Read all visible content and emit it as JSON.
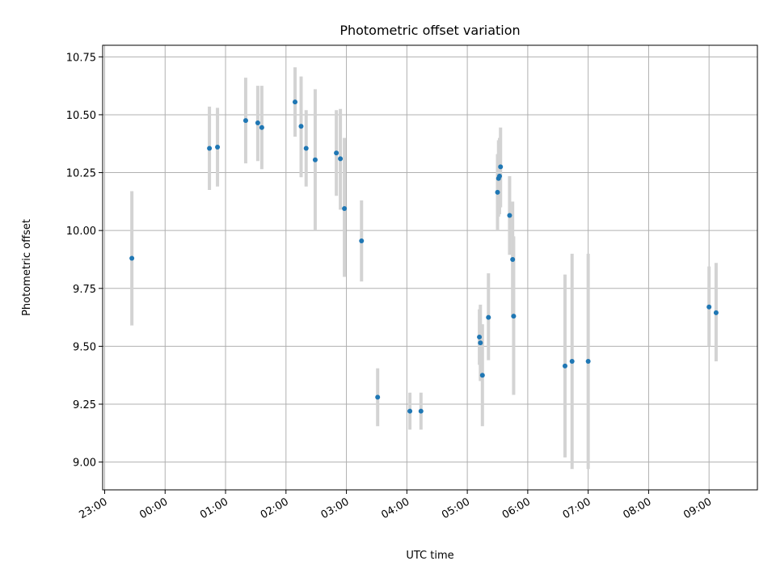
{
  "chart_data": {
    "type": "scatter",
    "title": "Photometric offset variation",
    "xlabel": "UTC time",
    "ylabel": "Photometric offset",
    "x_is_time": true,
    "xlim": [
      "22:58",
      "09:48"
    ],
    "ylim": [
      8.88,
      10.8
    ],
    "x_ticks": [
      "23:00",
      "00:00",
      "01:00",
      "02:00",
      "03:00",
      "04:00",
      "05:00",
      "06:00",
      "07:00",
      "08:00",
      "09:00"
    ],
    "y_ticks": [
      "9.00",
      "9.25",
      "9.50",
      "9.75",
      "10.00",
      "10.25",
      "10.50",
      "10.75"
    ],
    "y_tick_values": [
      9.0,
      9.25,
      9.5,
      9.75,
      10.0,
      10.25,
      10.5,
      10.75
    ],
    "grid": true,
    "marker_color": "#1f77b4",
    "errorbar_color": "#d3d3d3",
    "points": [
      {
        "x": "23:27",
        "y": 9.88,
        "lo": 9.59,
        "hi": 10.17
      },
      {
        "x": "00:44",
        "y": 10.355,
        "lo": 10.175,
        "hi": 10.535
      },
      {
        "x": "00:52",
        "y": 10.36,
        "lo": 10.19,
        "hi": 10.53
      },
      {
        "x": "01:20",
        "y": 10.475,
        "lo": 10.29,
        "hi": 10.66
      },
      {
        "x": "01:32",
        "y": 10.465,
        "lo": 10.3,
        "hi": 10.625
      },
      {
        "x": "01:36",
        "y": 10.445,
        "lo": 10.265,
        "hi": 10.625
      },
      {
        "x": "02:09",
        "y": 10.555,
        "lo": 10.405,
        "hi": 10.705
      },
      {
        "x": "02:15",
        "y": 10.45,
        "lo": 10.23,
        "hi": 10.665
      },
      {
        "x": "02:20",
        "y": 10.355,
        "lo": 10.19,
        "hi": 10.52
      },
      {
        "x": "02:29",
        "y": 10.305,
        "lo": 10.0,
        "hi": 10.61
      },
      {
        "x": "02:50",
        "y": 10.335,
        "lo": 10.15,
        "hi": 10.52
      },
      {
        "x": "02:54",
        "y": 10.31,
        "lo": 10.09,
        "hi": 10.525
      },
      {
        "x": "02:58",
        "y": 10.095,
        "lo": 9.8,
        "hi": 10.4
      },
      {
        "x": "03:15",
        "y": 9.955,
        "lo": 9.78,
        "hi": 10.13
      },
      {
        "x": "03:31",
        "y": 9.28,
        "lo": 9.155,
        "hi": 9.405
      },
      {
        "x": "04:03",
        "y": 9.22,
        "lo": 9.14,
        "hi": 9.3
      },
      {
        "x": "04:14",
        "y": 9.22,
        "lo": 9.14,
        "hi": 9.3
      },
      {
        "x": "05:12",
        "y": 9.54,
        "lo": 9.42,
        "hi": 9.66
      },
      {
        "x": "05:13",
        "y": 9.515,
        "lo": 9.35,
        "hi": 9.68
      },
      {
        "x": "05:15",
        "y": 9.375,
        "lo": 9.155,
        "hi": 9.595
      },
      {
        "x": "05:21",
        "y": 9.625,
        "lo": 9.44,
        "hi": 9.815
      },
      {
        "x": "05:30",
        "y": 10.165,
        "lo": 10.0,
        "hi": 10.33
      },
      {
        "x": "05:31",
        "y": 10.225,
        "lo": 10.06,
        "hi": 10.39
      },
      {
        "x": "05:32",
        "y": 10.235,
        "lo": 10.07,
        "hi": 10.4
      },
      {
        "x": "05:33",
        "y": 10.275,
        "lo": 10.1,
        "hi": 10.445
      },
      {
        "x": "05:42",
        "y": 10.065,
        "lo": 9.895,
        "hi": 10.235
      },
      {
        "x": "05:45",
        "y": 9.875,
        "lo": 9.625,
        "hi": 10.125
      },
      {
        "x": "05:46",
        "y": 9.63,
        "lo": 9.29,
        "hi": 9.975
      },
      {
        "x": "06:37",
        "y": 9.415,
        "lo": 9.02,
        "hi": 9.81
      },
      {
        "x": "06:44",
        "y": 9.435,
        "lo": 8.97,
        "hi": 9.9
      },
      {
        "x": "07:00",
        "y": 9.435,
        "lo": 8.97,
        "hi": 9.9
      },
      {
        "x": "09:00",
        "y": 9.67,
        "lo": 9.5,
        "hi": 9.845
      },
      {
        "x": "09:07",
        "y": 9.645,
        "lo": 9.435,
        "hi": 9.86
      }
    ]
  }
}
